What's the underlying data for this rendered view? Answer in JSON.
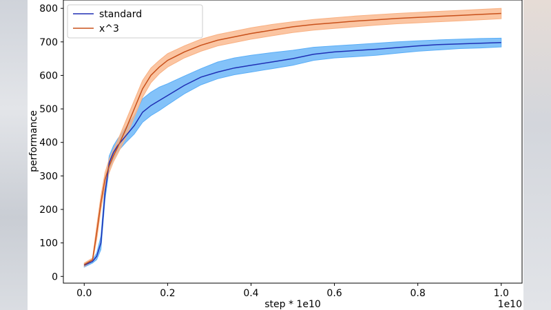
{
  "chart_data": {
    "type": "line",
    "xlabel": "step * 1e10",
    "ylabel": "performance",
    "offset_label": "1e10",
    "xlim": [
      -0.05,
      1.05
    ],
    "ylim": [
      -20,
      825
    ],
    "xticks": [
      "0.0",
      "0.2",
      "0.4",
      "0.6",
      "0.8",
      "1.0"
    ],
    "yticks": [
      "0",
      "100",
      "200",
      "300",
      "400",
      "500",
      "600",
      "700",
      "800"
    ],
    "grid": false,
    "legend_position": "top-left",
    "series": [
      {
        "name": "standard",
        "color": "#1f2fb4",
        "band_color": "#5aaef7",
        "x": [
          0.0,
          0.02,
          0.03,
          0.04,
          0.05,
          0.06,
          0.07,
          0.08,
          0.1,
          0.12,
          0.14,
          0.16,
          0.18,
          0.2,
          0.24,
          0.28,
          0.32,
          0.36,
          0.4,
          0.45,
          0.5,
          0.55,
          0.6,
          0.65,
          0.7,
          0.75,
          0.8,
          0.85,
          0.9,
          0.95,
          1.0
        ],
        "y": [
          33,
          45,
          60,
          100,
          250,
          340,
          370,
          390,
          420,
          450,
          490,
          510,
          525,
          540,
          570,
          595,
          610,
          622,
          630,
          640,
          650,
          663,
          670,
          674,
          678,
          683,
          688,
          692,
          694,
          696,
          698
        ],
        "lower": [
          28,
          40,
          50,
          80,
          230,
          320,
          350,
          372,
          400,
          425,
          460,
          480,
          495,
          512,
          545,
          572,
          590,
          602,
          610,
          620,
          630,
          645,
          652,
          656,
          660,
          666,
          672,
          676,
          680,
          682,
          685
        ],
        "upper": [
          38,
          50,
          70,
          120,
          270,
          360,
          390,
          410,
          445,
          480,
          530,
          550,
          565,
          575,
          598,
          620,
          640,
          652,
          660,
          668,
          675,
          684,
          688,
          692,
          696,
          700,
          703,
          706,
          708,
          710,
          711
        ]
      },
      {
        "name": "x^3",
        "color": "#c8501a",
        "band_color": "#f9b183",
        "x": [
          0.0,
          0.02,
          0.03,
          0.04,
          0.05,
          0.06,
          0.07,
          0.08,
          0.1,
          0.12,
          0.14,
          0.16,
          0.18,
          0.2,
          0.24,
          0.28,
          0.32,
          0.36,
          0.4,
          0.45,
          0.5,
          0.55,
          0.6,
          0.65,
          0.7,
          0.75,
          0.8,
          0.85,
          0.9,
          0.95,
          1.0
        ],
        "y": [
          35,
          50,
          130,
          220,
          290,
          330,
          360,
          385,
          440,
          500,
          560,
          600,
          625,
          645,
          670,
          690,
          705,
          715,
          725,
          735,
          745,
          752,
          757,
          762,
          766,
          770,
          773,
          776,
          779,
          782,
          785
        ],
        "lower": [
          30,
          45,
          110,
          200,
          270,
          310,
          342,
          365,
          415,
          475,
          535,
          578,
          605,
          625,
          652,
          672,
          688,
          698,
          708,
          718,
          728,
          735,
          740,
          745,
          750,
          754,
          757,
          760,
          763,
          766,
          769
        ],
        "upper": [
          40,
          55,
          150,
          240,
          310,
          350,
          378,
          405,
          465,
          525,
          585,
          622,
          645,
          665,
          688,
          708,
          722,
          732,
          742,
          752,
          760,
          767,
          772,
          777,
          781,
          785,
          788,
          791,
          794,
          797,
          800
        ]
      }
    ]
  }
}
